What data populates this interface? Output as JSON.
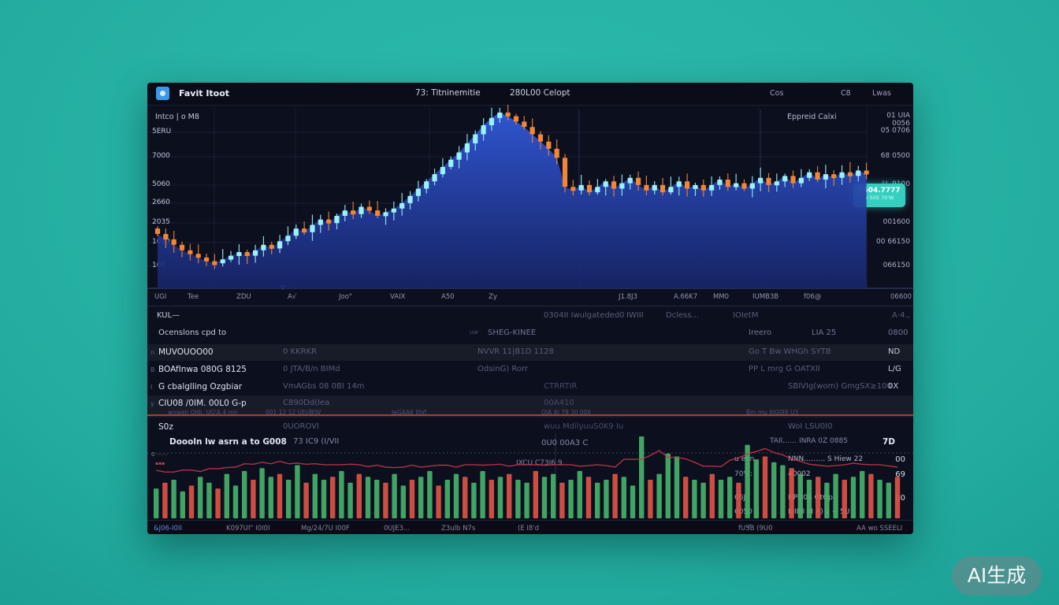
{
  "watermark": "AI生成",
  "titlebar": {
    "title": "Favit Itoot",
    "menu_items": [
      "73: Titninemitie",
      "280L00 Celopt"
    ],
    "right_items": [
      "Cos",
      "C8",
      "Lwas"
    ]
  },
  "chart": {
    "legend": "Intco | o M8",
    "right_label": "Eppreid Calxi",
    "left_axis": [
      "5ERU",
      "7000",
      "5060",
      "2660",
      "2035",
      "1010",
      "100"
    ],
    "right_axis": [
      "01 UIA 0056",
      "05 0706",
      "68 0500",
      "U. 9100",
      "001600",
      "00 66150",
      "066150"
    ],
    "x_axis": [
      "UGI",
      "Tee",
      "ZDU",
      "A√",
      "Joo\"",
      "VAIX",
      "A50",
      "Zy",
      "J1.8J3",
      "A.66K7",
      "MM0",
      "IUMB3B",
      "f06@",
      "06600"
    ],
    "price_badge": {
      "main": "T504.7777",
      "sub": "6 505 70'W"
    },
    "chart_data": {
      "type": "candlestick",
      "closes": [
        30,
        27,
        24,
        21,
        19,
        17,
        15,
        14,
        16,
        18,
        20,
        18,
        21,
        24,
        22,
        26,
        29,
        33,
        31,
        35,
        38,
        36,
        40,
        43,
        41,
        45,
        43,
        40,
        42,
        44,
        47,
        51,
        55,
        59,
        63,
        67,
        71,
        75,
        80,
        85,
        90,
        94,
        97,
        95,
        92,
        89,
        85,
        81,
        77,
        72,
        56,
        54,
        57,
        53,
        56,
        59,
        55,
        58,
        61,
        57,
        54,
        57,
        53,
        56,
        59,
        55,
        57,
        54,
        57,
        60,
        56,
        58,
        55,
        58,
        61,
        57,
        59,
        62,
        58,
        61,
        64,
        60,
        63,
        61,
        64,
        62,
        65,
        63
      ],
      "up_color": "#9af0fb",
      "down_color": "#f0863a",
      "area_top": "#3158d8",
      "area_bottom": "#17256b"
    }
  },
  "toolbar_row": {
    "left": "KUL—",
    "items": [
      "0304II Iwulgateded0",
      "IWIII",
      "Dcless...",
      "IOIetM"
    ],
    "right": "A·4.,"
  },
  "table": {
    "header": {
      "name": "Ocenslons cpd to",
      "small": "uw",
      "col2": "SHEG-KINEE",
      "col3": "Ireero",
      "col4": "LIA 25",
      "col5": "0800"
    },
    "rows": [
      {
        "icon": "n",
        "name": "MUVOUOO00",
        "a": "0 KKRKR",
        "b": "NVVR 11|B1D 1128",
        "d": "Go T Bw WHGh SYTB",
        "f": "ND"
      },
      {
        "icon": "B",
        "name": "BOAfInwa 080G 8125",
        "a": "0 JTA/B/n BIMd",
        "b": "OdsinG) Rorr",
        "d": "PP L mrg G OATXII",
        "f": "L/G"
      },
      {
        "icon": "I",
        "name": "G cbalglling Ozgbiar",
        "a": "VmAGbs 08 0BI 14m",
        "c": "CTRRTIR",
        "e": "SBIVIg(wom)  GmgSX≥100",
        "f": "0X"
      },
      {
        "icon": "y",
        "name": "CIU08 /0IM. 00L0 G-p",
        "a": "C890Dd(Iea",
        "c": "00A410",
        "subrow": [
          "wowen OIIb. UO'A 4 mn",
          "001 12 12 UEI/BIW",
          "IeGAA6 IIIVI",
          "OIA AI 78 3II 00II",
          "Bm mu IIIG0I8 U3"
        ]
      },
      {
        "name": "S0z",
        "a": "0UOROVI",
        "c": "wuu MdilyuuS0K9 Iu",
        "e": "WoI   LSU0I0"
      }
    ]
  },
  "volume_section": {
    "title": "Doooln lw asrn a to G008",
    "subtitle": "73 IC9 (I/VII",
    "center_label": "0U0 00A3 C",
    "center_sub": "IXCU C73I6 9",
    "right_title": "TAIl……  INRA 0Z 0885",
    "right_value": "7D",
    "left_mark": "0 ⋯⋯",
    "left_mark2": "▪▪▪",
    "list": [
      {
        "a": "u eon",
        "b": "NNN………  S Hiew  22",
        "v": "00"
      },
      {
        "a": "70%:",
        "b": "40002",
        "v": "69"
      },
      {
        "a": "66J",
        "b": "HPO06 OtOp",
        "v": "00"
      },
      {
        "a": "6050",
        "b": "IIIIIIII III A) y ~ 5U",
        "v": ""
      }
    ],
    "chart_data": {
      "type": "bar",
      "values": [
        0.35,
        -0.45,
        0.5,
        0.3,
        -0.4,
        0.55,
        0.45,
        -0.35,
        0.6,
        0.4,
        0.65,
        -0.5,
        0.7,
        0.55,
        -0.6,
        0.5,
        0.75,
        -0.45,
        0.6,
        0.5,
        -0.55,
        0.65,
        0.45,
        -0.6,
        0.55,
        0.5,
        -0.45,
        0.6,
        0.4,
        -0.5,
        0.55,
        0.65,
        -0.4,
        0.5,
        0.6,
        -0.55,
        0.45,
        0.65,
        -0.5,
        0.55,
        -0.6,
        0.5,
        0.45,
        -0.65,
        0.55,
        0.6,
        -0.45,
        0.5,
        0.65,
        -0.55,
        0.45,
        0.5,
        -0.6,
        0.55,
        0.4,
        1.25,
        -0.5,
        0.6,
        0.95,
        0.9,
        -0.55,
        0.5,
        0.45,
        -0.6,
        0.5,
        0.55,
        -0.45,
        1.1,
        0.85,
        -0.9,
        0.8,
        0.75,
        -0.7,
        0.6,
        0.5,
        -0.55,
        0.45,
        0.6,
        -0.5,
        0.55,
        0.65,
        -0.6,
        0.5,
        0.45,
        -0.55
      ],
      "up_color": "#46b06a",
      "down_color": "#de5246",
      "ma_color": "#c8344a"
    }
  },
  "statusbar": {
    "items": [
      "&J06-I0II",
      "K097UI\" I0I0I",
      "Mg/24/7U I00F",
      "0UJE3..."
    ],
    "center": "Z3ulb N7s",
    "center2": "(E I8'd",
    "right1": "fU5B (9U0",
    "right2": "AA wo SSEELI",
    "check": "✓"
  }
}
